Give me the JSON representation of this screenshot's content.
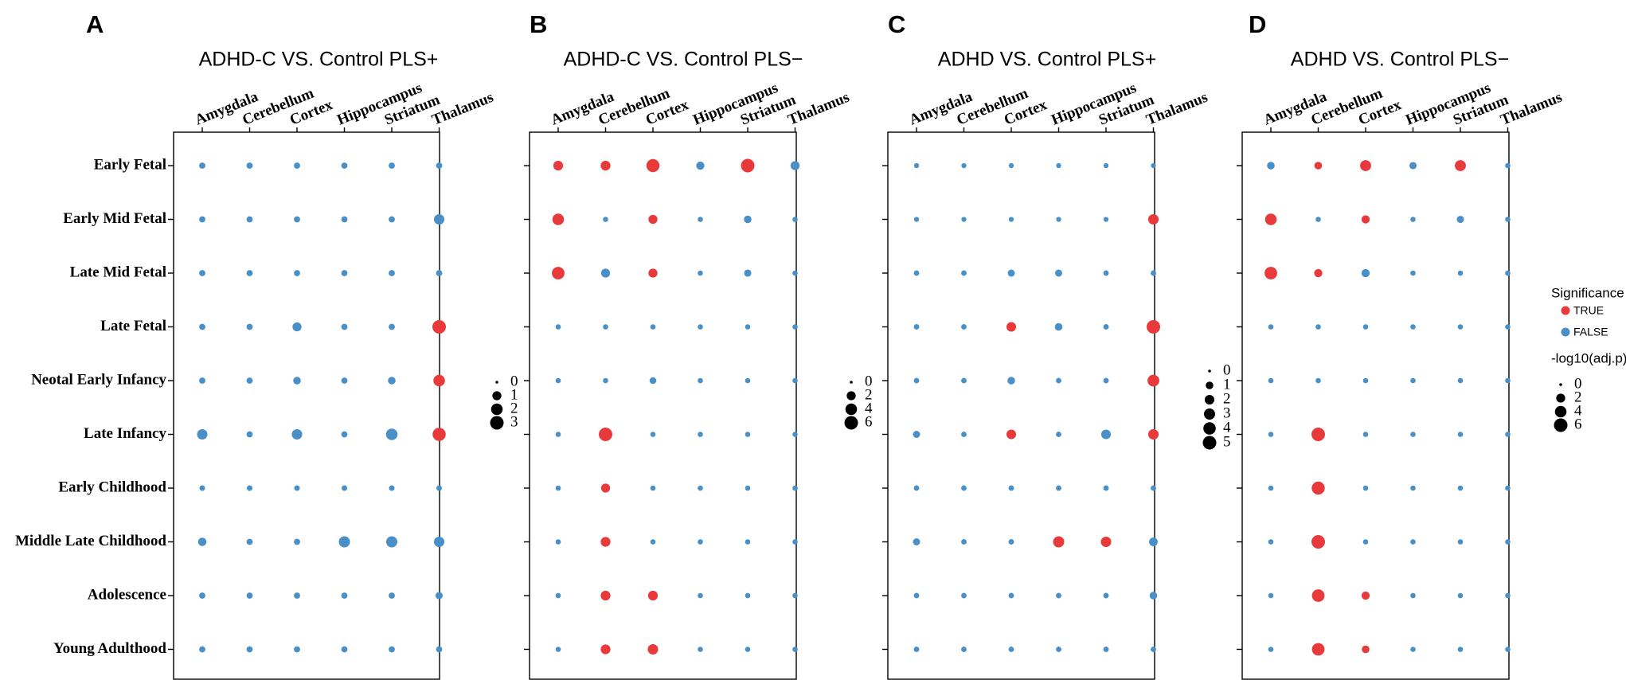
{
  "chart_data": {
    "type": "scatter",
    "rows": [
      "Early Fetal",
      "Early Mid Fetal",
      "Late Mid Fetal",
      "Late Fetal",
      "Neotal Early Infancy",
      "Late Infancy",
      "Early Childhood",
      "Middle Late Childhood",
      "Adolescence",
      "Young Adulthood"
    ],
    "columns": [
      "Amygdala",
      "Cerebellum",
      "Cortex",
      "Hippocampus",
      "Striatum",
      "Thalamus"
    ],
    "colors": {
      "TRUE": "#E8393B",
      "FALSE": "#4A90C8"
    },
    "panels": [
      {
        "letter": "A",
        "title": "ADHD-C VS. Control PLS+",
        "size_legend": [
          0,
          1,
          2,
          3
        ],
        "size_max": 3,
        "values": [
          [
            0.3,
            0.3,
            0.3,
            0.3,
            0.3,
            0.3
          ],
          [
            0.3,
            0.3,
            0.3,
            0.3,
            0.3,
            1.5
          ],
          [
            0.3,
            0.3,
            0.3,
            0.3,
            0.3,
            0.3
          ],
          [
            0.3,
            0.3,
            1.0,
            0.3,
            0.3,
            3.0
          ],
          [
            0.3,
            0.3,
            0.6,
            0.3,
            0.6,
            2.0
          ],
          [
            1.5,
            0.3,
            1.5,
            0.3,
            2.0,
            2.8
          ],
          [
            0.2,
            0.2,
            0.2,
            0.2,
            0.2,
            0.2
          ],
          [
            0.8,
            0.3,
            0.3,
            1.8,
            1.8,
            1.5
          ],
          [
            0.3,
            0.3,
            0.3,
            0.3,
            0.3,
            0.5
          ],
          [
            0.3,
            0.3,
            0.3,
            0.3,
            0.3,
            0.3
          ]
        ],
        "significant": [
          [
            0,
            0,
            0,
            0,
            0,
            0
          ],
          [
            0,
            0,
            0,
            0,
            0,
            0
          ],
          [
            0,
            0,
            0,
            0,
            0,
            0
          ],
          [
            0,
            0,
            0,
            0,
            0,
            1
          ],
          [
            0,
            0,
            0,
            0,
            0,
            1
          ],
          [
            0,
            0,
            0,
            0,
            0,
            1
          ],
          [
            0,
            0,
            0,
            0,
            0,
            0
          ],
          [
            0,
            0,
            0,
            0,
            0,
            0
          ],
          [
            0,
            0,
            0,
            0,
            0,
            0
          ],
          [
            0,
            0,
            0,
            0,
            0,
            0
          ]
        ]
      },
      {
        "letter": "B",
        "title": "ADHD-C VS.  Control PLS−",
        "size_legend": [
          0,
          2,
          4,
          6
        ],
        "size_max": 6,
        "values": [
          [
            2.5,
            2.5,
            5.5,
            1.5,
            6.0,
            2.0
          ],
          [
            4.0,
            0.3,
            2.0,
            0.3,
            1.2,
            0.3
          ],
          [
            5.0,
            2.0,
            2.0,
            0.3,
            1.0,
            0.3
          ],
          [
            0.3,
            0.3,
            0.3,
            0.3,
            0.3,
            0.3
          ],
          [
            0.3,
            0.3,
            0.8,
            0.3,
            0.3,
            0.3
          ],
          [
            0.3,
            6.0,
            0.3,
            0.3,
            0.3,
            0.3
          ],
          [
            0.3,
            2.0,
            0.3,
            0.3,
            0.3,
            0.3
          ],
          [
            0.3,
            2.5,
            0.3,
            0.3,
            0.3,
            0.3
          ],
          [
            0.3,
            2.5,
            2.5,
            0.3,
            0.3,
            0.3
          ],
          [
            0.3,
            2.5,
            3.0,
            0.3,
            0.3,
            0.3
          ]
        ],
        "significant": [
          [
            1,
            1,
            1,
            0,
            1,
            0
          ],
          [
            1,
            0,
            1,
            0,
            0,
            0
          ],
          [
            1,
            0,
            1,
            0,
            0,
            0
          ],
          [
            0,
            0,
            0,
            0,
            0,
            0
          ],
          [
            0,
            0,
            0,
            0,
            0,
            0
          ],
          [
            0,
            1,
            0,
            0,
            0,
            0
          ],
          [
            0,
            1,
            0,
            0,
            0,
            0
          ],
          [
            0,
            1,
            0,
            0,
            0,
            0
          ],
          [
            0,
            1,
            1,
            0,
            0,
            0
          ],
          [
            0,
            1,
            1,
            0,
            0,
            0
          ]
        ]
      },
      {
        "letter": "C",
        "title": "ADHD VS. Control PLS+",
        "size_legend": [
          0,
          1,
          2,
          3,
          4,
          5
        ],
        "size_max": 5,
        "values": [
          [
            0.2,
            0.2,
            0.2,
            0.2,
            0.2,
            0.2
          ],
          [
            0.2,
            0.2,
            0.2,
            0.2,
            0.2,
            2.5
          ],
          [
            0.3,
            0.3,
            0.8,
            0.8,
            0.3,
            0.3
          ],
          [
            0.3,
            0.3,
            2.0,
            1.0,
            0.3,
            5.0
          ],
          [
            0.3,
            0.3,
            1.0,
            0.3,
            0.3,
            3.5
          ],
          [
            0.8,
            0.3,
            2.0,
            0.3,
            2.0,
            2.5
          ],
          [
            0.3,
            0.3,
            0.3,
            0.3,
            0.3,
            0.3
          ],
          [
            0.8,
            0.3,
            0.3,
            3.0,
            2.5,
            1.5
          ],
          [
            0.3,
            0.3,
            0.3,
            0.3,
            0.3,
            1.0
          ],
          [
            0.3,
            0.3,
            0.3,
            0.3,
            0.3,
            0.3
          ]
        ],
        "significant": [
          [
            0,
            0,
            0,
            0,
            0,
            0
          ],
          [
            0,
            0,
            0,
            0,
            0,
            1
          ],
          [
            0,
            0,
            0,
            0,
            0,
            0
          ],
          [
            0,
            0,
            1,
            0,
            0,
            1
          ],
          [
            0,
            0,
            0,
            0,
            0,
            1
          ],
          [
            0,
            0,
            1,
            0,
            0,
            1
          ],
          [
            0,
            0,
            0,
            0,
            0,
            0
          ],
          [
            0,
            0,
            0,
            1,
            1,
            0
          ],
          [
            0,
            0,
            0,
            0,
            0,
            0
          ],
          [
            0,
            0,
            0,
            0,
            0,
            0
          ]
        ]
      },
      {
        "letter": "D",
        "title": "ADHD VS. Control PLS−",
        "size_legend": [
          0,
          2,
          4,
          6
        ],
        "size_max": 6,
        "values": [
          [
            1.2,
            1.2,
            3.5,
            1.0,
            3.5,
            0.3
          ],
          [
            4.0,
            0.3,
            1.5,
            0.3,
            1.0,
            0.3
          ],
          [
            5.0,
            1.5,
            1.5,
            0.3,
            0.3,
            0.3
          ],
          [
            0.3,
            0.3,
            0.3,
            0.3,
            0.3,
            0.3
          ],
          [
            0.3,
            0.3,
            0.3,
            0.3,
            0.3,
            0.3
          ],
          [
            0.3,
            6.0,
            0.3,
            0.3,
            0.3,
            0.3
          ],
          [
            0.3,
            5.5,
            0.3,
            0.3,
            0.3,
            0.3
          ],
          [
            0.3,
            6.0,
            0.3,
            0.3,
            0.3,
            0.3
          ],
          [
            0.3,
            5.0,
            1.5,
            0.3,
            0.3,
            0.3
          ],
          [
            0.3,
            5.0,
            1.2,
            0.3,
            0.3,
            0.3
          ]
        ],
        "significant": [
          [
            0,
            1,
            1,
            0,
            1,
            0
          ],
          [
            1,
            0,
            1,
            0,
            0,
            0
          ],
          [
            1,
            1,
            0,
            0,
            0,
            0
          ],
          [
            0,
            0,
            0,
            0,
            0,
            0
          ],
          [
            0,
            0,
            0,
            0,
            0,
            0
          ],
          [
            0,
            1,
            0,
            0,
            0,
            0
          ],
          [
            0,
            1,
            0,
            0,
            0,
            0
          ],
          [
            0,
            1,
            0,
            0,
            0,
            0
          ],
          [
            0,
            1,
            1,
            0,
            0,
            0
          ],
          [
            0,
            1,
            1,
            0,
            0,
            0
          ]
        ]
      }
    ],
    "legend": {
      "significance_title": "Significance",
      "significance_true": "TRUE",
      "significance_false": "FALSE",
      "size_title": "-log10(adj.p)"
    }
  }
}
